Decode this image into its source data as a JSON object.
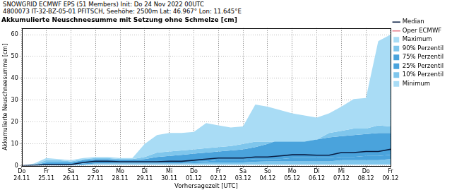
{
  "chart_data": {
    "type": "area",
    "subtitle": [
      "SNOWGRID ECMWF EPS (51 Members) Init: Do 24 Nov 2022 00UTC",
      "4800073 IT-32-BZ-05-01 PFITSCH, Seehöhe: 2500m Lat: 46.967° Lon: 11.645°E"
    ],
    "title": "Akkumulierte Neuschneesumme mit Setzung ohne Schmelze [cm]",
    "x_label": "Vorhersagezeit [UTC]",
    "y_label": "Akkumulierte Neuschneesumme [cm]",
    "categories": [
      "Do 24.11",
      null,
      "Fr 25.11",
      null,
      "Sa 26.11",
      null,
      "So 27.11",
      null,
      "Mo 28.11",
      null,
      "Di 29.11",
      null,
      "Mi 30.11",
      null,
      "Do 01.12",
      null,
      "Fr 02.12",
      null,
      "Sa 03.12",
      null,
      "So 04.12",
      null,
      "Mo 05.12",
      null,
      "Di 06.12",
      null,
      "Mi 07.12",
      null,
      "Do 08.12",
      null,
      "Fr 09.12"
    ],
    "series": [
      {
        "name": "Maximum",
        "type": "area",
        "color": "#a9dcf5",
        "values": [
          0,
          1,
          3.5,
          3,
          2.5,
          3.5,
          4,
          4,
          3.5,
          3.5,
          10,
          14,
          15,
          15,
          15.5,
          19.5,
          18.5,
          17.5,
          18,
          28,
          27,
          25.5,
          24,
          23,
          22,
          24,
          27,
          30.5,
          31,
          57,
          60
        ]
      },
      {
        "name": "90% Perzentil",
        "type": "area",
        "color": "#7fc6ec",
        "values": [
          0,
          0.5,
          2.5,
          2.5,
          2,
          3,
          3.5,
          3.5,
          3,
          3,
          4,
          6,
          6.5,
          7,
          7.5,
          8,
          8.5,
          9,
          10,
          11,
          11,
          11,
          11,
          11,
          12,
          15,
          16,
          17,
          17,
          18.5,
          18
        ]
      },
      {
        "name": "75% Perzentil",
        "type": "area",
        "color": "#4aa3dc",
        "values": [
          0,
          0.3,
          1.5,
          1.5,
          1.5,
          2.5,
          3,
          3,
          2.8,
          2.8,
          3,
          4,
          4.5,
          5,
          5.5,
          6,
          6.5,
          7,
          7.5,
          8.5,
          10,
          12,
          13.5,
          13,
          12,
          13,
          13.5,
          14,
          14.5,
          15,
          15
        ]
      },
      {
        "name": "Median",
        "type": "line",
        "color": "#0a1f44",
        "values": [
          0,
          0.2,
          0.5,
          0.5,
          0.5,
          1.5,
          2,
          2,
          1.8,
          1.8,
          1.8,
          1.8,
          2,
          2,
          2.5,
          3,
          3.5,
          3.5,
          3.5,
          4,
          4,
          4.5,
          5,
          5,
          4.8,
          4.8,
          6,
          6,
          6.5,
          6.5,
          7.5
        ]
      },
      {
        "name": "25% Perzentil",
        "type": "area",
        "color": "#4aa3dc",
        "values": [
          0,
          0,
          0.3,
          0.3,
          0.3,
          1,
          1.5,
          1.5,
          1.3,
          1.3,
          1.3,
          1.3,
          1.5,
          1.5,
          1.8,
          2,
          2.5,
          2.5,
          2.5,
          3,
          3,
          3,
          3.5,
          3.5,
          3.5,
          3.5,
          4,
          4,
          4.5,
          4.5,
          5
        ]
      },
      {
        "name": "10% Perzentil",
        "type": "area",
        "color": "#7fc6ec",
        "values": [
          0,
          0,
          0.2,
          0.2,
          0.2,
          0.5,
          1,
          1,
          1,
          1,
          1,
          1,
          1,
          1,
          1.2,
          1.3,
          1.5,
          1.5,
          1.5,
          1.8,
          2,
          2,
          2,
          2,
          2,
          2,
          2.5,
          2.5,
          2.5,
          2.5,
          3
        ]
      },
      {
        "name": "Minimum",
        "type": "area",
        "color": "#a9dcf5",
        "values": [
          0,
          0,
          0,
          0,
          0,
          0.3,
          0.5,
          0.5,
          0.5,
          0.5,
          0.5,
          0.5,
          0.5,
          0.5,
          0.5,
          0.5,
          0.5,
          0.5,
          0.5,
          0.5,
          0.5,
          0.5,
          0.5,
          0.5,
          0.5,
          0.5,
          0.5,
          0.5,
          0.5,
          0.5,
          0.5
        ]
      },
      {
        "name": "Oper ECMWF",
        "type": "line",
        "color": "#e8828f",
        "values": [
          null,
          null,
          null,
          null,
          null,
          null,
          null,
          null,
          null,
          null,
          null,
          null,
          null,
          null,
          null,
          null,
          null,
          null,
          null,
          null,
          null,
          null,
          null,
          null,
          null,
          null,
          null,
          null,
          null,
          null,
          null
        ]
      }
    ],
    "ylim": [
      0,
      63
    ],
    "yticks": [
      0,
      10,
      20,
      30,
      40,
      50,
      60
    ],
    "grid": true,
    "legend": "right"
  }
}
